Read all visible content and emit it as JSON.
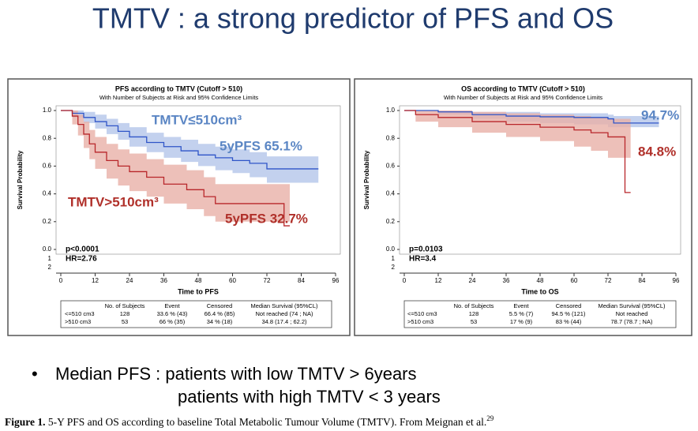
{
  "title": "TMTV : a strong predictor of PFS and OS",
  "chart_data": [
    {
      "type": "step",
      "title": "PFS according to TMTV (Cutoff > 510)",
      "subtitle": "With Number of Subjects at Risk and 95% Confidence Limits",
      "x_label": "Time to PFS",
      "y_label": "Survival Probability",
      "xlim": [
        0,
        96
      ],
      "xticks": [
        0,
        12,
        24,
        36,
        48,
        60,
        72,
        84,
        96
      ],
      "ylim": [
        0,
        1
      ],
      "yticks": [
        {
          "value": 0,
          "label": "0.0"
        },
        0.2,
        0.4,
        0.6,
        0.8,
        {
          "value": 1,
          "label": "1.0"
        }
      ],
      "y_extra_labels": [
        "1",
        "2"
      ],
      "stats": [
        "p<0.0001",
        "HR=2.76"
      ],
      "series": [
        {
          "name": "TMTV≤510cm³",
          "annotation": "5yPFS 65.1%",
          "color": "#2f55c8",
          "band_color": "#b4c6ea",
          "text_color": "#5b86c4",
          "x": [
            0,
            4,
            8,
            12,
            16,
            20,
            24,
            30,
            36,
            42,
            48,
            54,
            60,
            66,
            72,
            90
          ],
          "values": [
            1,
            0.98,
            0.95,
            0.92,
            0.89,
            0.85,
            0.81,
            0.77,
            0.74,
            0.71,
            0.68,
            0.66,
            0.64,
            0.62,
            0.58,
            0.58
          ],
          "lower": [
            1,
            0.95,
            0.91,
            0.87,
            0.83,
            0.79,
            0.74,
            0.7,
            0.66,
            0.63,
            0.6,
            0.57,
            0.55,
            0.52,
            0.48,
            0.48
          ],
          "upper": [
            1,
            1,
            0.99,
            0.97,
            0.94,
            0.91,
            0.88,
            0.84,
            0.81,
            0.79,
            0.76,
            0.74,
            0.72,
            0.7,
            0.67,
            0.67
          ]
        },
        {
          "name": "TMTV>510cm³",
          "annotation": "5yPFS 32.7%",
          "color": "#b8262a",
          "band_color": "#e9b0a8",
          "text_color": "#b0302a",
          "x": [
            0,
            4,
            6,
            8,
            10,
            12,
            16,
            20,
            24,
            30,
            36,
            44,
            50,
            54,
            78,
            80
          ],
          "values": [
            1,
            0.96,
            0.9,
            0.83,
            0.76,
            0.7,
            0.64,
            0.6,
            0.56,
            0.52,
            0.47,
            0.43,
            0.38,
            0.33,
            0.17,
            0.17
          ],
          "lower": [
            1,
            0.9,
            0.82,
            0.73,
            0.65,
            0.58,
            0.51,
            0.46,
            0.42,
            0.38,
            0.33,
            0.29,
            0.24,
            0.2,
            0.2,
            0.2
          ],
          "upper": [
            1,
            1,
            0.97,
            0.92,
            0.86,
            0.81,
            0.76,
            0.72,
            0.69,
            0.65,
            0.61,
            0.57,
            0.52,
            0.47,
            0.47,
            0.47
          ]
        }
      ],
      "table": {
        "header": [
          "No. of Subjects",
          "Event",
          "Censored",
          "Median Survival (95%CL)"
        ],
        "rows": [
          [
            "<=510 cm3",
            "128",
            "33.6 % (43)",
            "66.4 % (85)",
            "Not reached (74 ; NA)"
          ],
          [
            ">510 cm3",
            "53",
            "66 % (35)",
            "34 % (18)",
            "34.8 (17.4 ; 62.2)"
          ]
        ]
      }
    },
    {
      "type": "step",
      "title": "OS according to TMTV (Cutoff > 510)",
      "subtitle": "With Number of Subjects at Risk and 95% Confidence Limits",
      "x_label": "Time to OS",
      "y_label": "Survival Probability",
      "xlim": [
        0,
        96
      ],
      "xticks": [
        0,
        12,
        24,
        36,
        48,
        60,
        72,
        84,
        96
      ],
      "ylim": [
        0,
        1
      ],
      "yticks": [
        {
          "value": 0,
          "label": "0.0"
        },
        0.2,
        0.4,
        0.6,
        0.8,
        {
          "value": 1,
          "label": "1.0"
        }
      ],
      "y_extra_labels": [
        "1",
        "2"
      ],
      "stats": [
        "p=0.0103",
        "HR=3.4"
      ],
      "series": [
        {
          "annotation": "94.7%",
          "color": "#2f55c8",
          "band_color": "#b4c6ea",
          "text_color": "#5b86c4",
          "x": [
            0,
            12,
            24,
            36,
            48,
            60,
            72,
            74,
            90
          ],
          "values": [
            1,
            0.99,
            0.97,
            0.96,
            0.955,
            0.95,
            0.94,
            0.91,
            0.91
          ],
          "lower": [
            1,
            0.97,
            0.94,
            0.92,
            0.91,
            0.9,
            0.88,
            0.88,
            0.88
          ],
          "upper": [
            1,
            1,
            0.99,
            0.99,
            0.98,
            0.98,
            0.97,
            0.96,
            0.96
          ]
        },
        {
          "annotation": "84.8%",
          "color": "#b8262a",
          "band_color": "#e9b0a8",
          "text_color": "#b0302a",
          "x": [
            0,
            4,
            12,
            24,
            36,
            48,
            60,
            66,
            72,
            78,
            80
          ],
          "values": [
            1,
            0.97,
            0.95,
            0.92,
            0.9,
            0.88,
            0.86,
            0.84,
            0.81,
            0.41,
            0.41
          ],
          "lower": [
            1,
            0.92,
            0.88,
            0.84,
            0.81,
            0.78,
            0.74,
            0.71,
            0.66,
            0.66,
            0.66
          ],
          "upper": [
            1,
            1,
            1,
            0.99,
            0.98,
            0.97,
            0.96,
            0.95,
            0.94,
            0.94,
            0.94
          ]
        }
      ],
      "table": {
        "header": [
          "No. of Subjects",
          "Event",
          "Censored",
          "Median Survival (95%CL)"
        ],
        "rows": [
          [
            "<=510 cm3",
            "128",
            "5.5 % (7)",
            "94.5 % (121)",
            "Not reached"
          ],
          [
            ">510 cm3",
            "53",
            "17 % (9)",
            "83 % (44)",
            "78.7 (78.7 ; NA)"
          ]
        ]
      }
    }
  ],
  "bullet": [
    "Median PFS : patients with low TMTV > 6years",
    "patients with high TMTV < 3 years"
  ],
  "caption": {
    "label": "Figure 1.",
    "text": "5-Y PFS and OS according to baseline Total Metabolic Tumour Volume (TMTV). From Meignan et al.",
    "ref": "29"
  }
}
